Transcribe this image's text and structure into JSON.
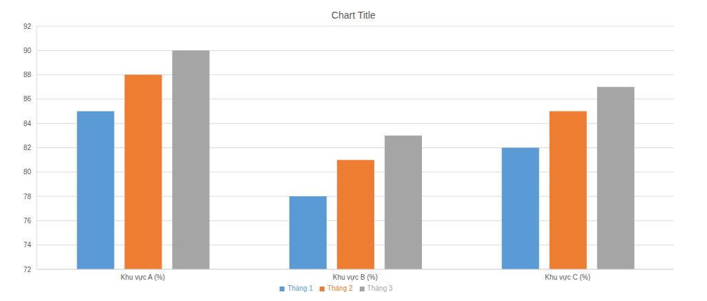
{
  "chart_data": {
    "type": "bar",
    "title": "Chart Title",
    "categories": [
      "Khu vực A (%)",
      "Khu vực B (%)",
      "Khu vực C (%)"
    ],
    "series": [
      {
        "name": "Tháng 1",
        "color": "#5b9bd5",
        "values": [
          85,
          78,
          82
        ]
      },
      {
        "name": "Tháng 2",
        "color": "#ed7d31",
        "values": [
          88,
          81,
          85
        ]
      },
      {
        "name": "Tháng 3",
        "color": "#a5a5a5",
        "values": [
          90,
          83,
          87
        ]
      }
    ],
    "ylim": [
      72,
      92
    ],
    "yticks": [
      72,
      74,
      76,
      78,
      80,
      82,
      84,
      86,
      88,
      90,
      92
    ],
    "grid": true,
    "legend": "bottom"
  }
}
